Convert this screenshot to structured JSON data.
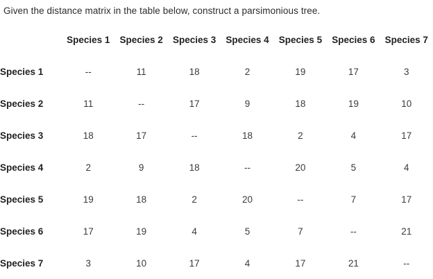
{
  "title": "Given the distance matrix in the table below, construct a parsimonious tree.",
  "table": {
    "corner_label": "",
    "column_headers": [
      "Species 1",
      "Species 2",
      "Species 3",
      "Species 4",
      "Species 5",
      "Species 6",
      "Species 7"
    ],
    "rows": [
      {
        "label": "Species 1",
        "values": [
          "--",
          "11",
          "18",
          "2",
          "19",
          "17",
          "3"
        ]
      },
      {
        "label": "Species 2",
        "values": [
          "11",
          "--",
          "17",
          "9",
          "18",
          "19",
          "10"
        ]
      },
      {
        "label": "Species 3",
        "values": [
          "18",
          "17",
          "--",
          "18",
          "2",
          "4",
          "17"
        ]
      },
      {
        "label": "Species 4",
        "values": [
          "2",
          "9",
          "18",
          "--",
          "20",
          "5",
          "4"
        ]
      },
      {
        "label": "Species 5",
        "values": [
          "19",
          "18",
          "2",
          "20",
          "--",
          "7",
          "17"
        ]
      },
      {
        "label": "Species 6",
        "values": [
          "17",
          "19",
          "4",
          "5",
          "7",
          "--",
          "21"
        ]
      },
      {
        "label": "Species 7",
        "values": [
          "3",
          "10",
          "17",
          "4",
          "17",
          "21",
          "--"
        ]
      }
    ]
  },
  "colors": {
    "background": "#ffffff",
    "title_text": "#2b2b2b",
    "header_text": "#212121",
    "value_text": "#3a3a3a"
  }
}
